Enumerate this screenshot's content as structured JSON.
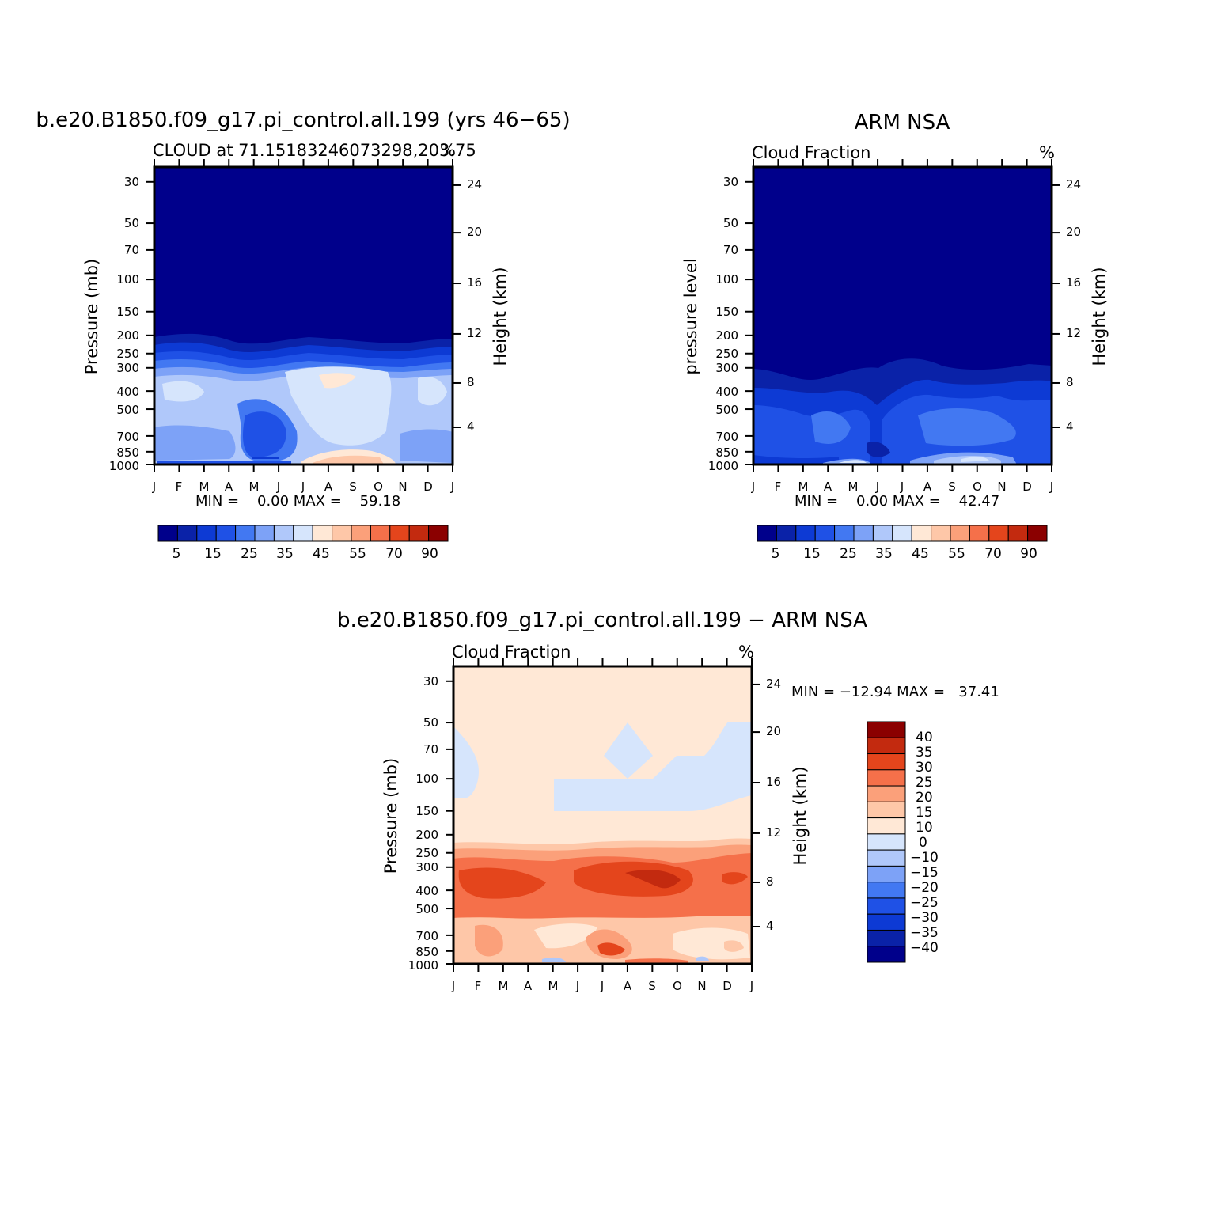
{
  "colors": {
    "abs_scale": [
      "#00008b",
      "#0a22a8",
      "#0d3ad4",
      "#1f51e6",
      "#4278f2",
      "#7da2f7",
      "#b0c8fa",
      "#d6e5fc",
      "#ffe8d6",
      "#fec7a8",
      "#fba07a",
      "#f5704a",
      "#e4451c",
      "#c32a0f",
      "#8b0000"
    ],
    "diff_scale": [
      "#00008b",
      "#0a22a8",
      "#0d3ad4",
      "#1f51e6",
      "#4278f2",
      "#7da2f7",
      "#b0c8fa",
      "#d6e5fc",
      "#ffe8d6",
      "#fec7a8",
      "#fba07a",
      "#f5704a",
      "#e4451c",
      "#c32a0f",
      "#8b0000"
    ]
  },
  "panels": [
    {
      "title": "b.e20.B1850.f09_g17.pi_control.all.199 (yrs 46−65)",
      "subtitle": "CLOUD at 71.15183246073298,203.75",
      "units": "%",
      "left_axis_label": "Pressure (mb)",
      "right_axis_label": "Height (km)",
      "minmax": "MIN =    0.00 MAX =    59.18",
      "colorbar_labels": [
        "5",
        "15",
        "25",
        "35",
        "45",
        "55",
        "70",
        "90"
      ]
    },
    {
      "title": "ARM NSA",
      "subtitle": "Cloud Fraction",
      "units": "%",
      "left_axis_label": "pressure level",
      "right_axis_label": "Height (km)",
      "minmax": "MIN =    0.00 MAX =    42.47",
      "colorbar_labels": [
        "5",
        "15",
        "25",
        "35",
        "45",
        "55",
        "70",
        "90"
      ]
    },
    {
      "title": "b.e20.B1850.f09_g17.pi_control.all.199 − ARM NSA",
      "subtitle": "Cloud Fraction",
      "units": "%",
      "left_axis_label": "Pressure (mb)",
      "right_axis_label": "Height (km)",
      "minmax": "MIN = −12.94 MAX =   37.41",
      "colorbar_labels": [
        "40",
        "35",
        "30",
        "25",
        "20",
        "15",
        "10",
        "0",
        "−10",
        "−15",
        "−20",
        "−25",
        "−30",
        "−35",
        "−40"
      ]
    }
  ],
  "chart_data": [
    {
      "type": "heatmap",
      "title": "b.e20.B1850.f09_g17.pi_control.all.199 (yrs 46−65)",
      "subtitle": "CLOUD at 71.15183246073298,203.75",
      "x": [
        "J",
        "F",
        "M",
        "A",
        "M",
        "J",
        "J",
        "A",
        "S",
        "O",
        "N",
        "D",
        "J"
      ],
      "pressure_ticks": [
        30,
        50,
        70,
        100,
        150,
        200,
        250,
        300,
        400,
        500,
        700,
        850,
        1000
      ],
      "height_ticks": [
        4,
        8,
        12,
        16,
        20,
        24
      ],
      "ylabel": "Pressure (mb)",
      "y2label": "Height (km)",
      "units": "%",
      "min": 0.0,
      "max": 59.18,
      "levels": [
        5,
        15,
        25,
        35,
        45,
        55,
        70,
        90
      ]
    },
    {
      "type": "heatmap",
      "title": "ARM NSA",
      "subtitle": "Cloud Fraction",
      "x": [
        "J",
        "F",
        "M",
        "A",
        "M",
        "J",
        "J",
        "A",
        "S",
        "O",
        "N",
        "D",
        "J"
      ],
      "pressure_ticks": [
        30,
        50,
        70,
        100,
        150,
        200,
        250,
        300,
        400,
        500,
        700,
        850,
        1000
      ],
      "height_ticks": [
        4,
        8,
        12,
        16,
        20,
        24
      ],
      "ylabel": "pressure level",
      "y2label": "Height (km)",
      "units": "%",
      "min": 0.0,
      "max": 42.47,
      "levels": [
        5,
        15,
        25,
        35,
        45,
        55,
        70,
        90
      ]
    },
    {
      "type": "heatmap",
      "title": "b.e20.B1850.f09_g17.pi_control.all.199 − ARM NSA",
      "subtitle": "Cloud Fraction",
      "x": [
        "J",
        "F",
        "M",
        "A",
        "M",
        "J",
        "J",
        "A",
        "S",
        "O",
        "N",
        "D",
        "J"
      ],
      "pressure_ticks": [
        30,
        50,
        70,
        100,
        150,
        200,
        250,
        300,
        400,
        500,
        700,
        850,
        1000
      ],
      "height_ticks": [
        4,
        8,
        12,
        16,
        20,
        24
      ],
      "ylabel": "Pressure (mb)",
      "y2label": "Height (km)",
      "units": "%",
      "min": -12.94,
      "max": 37.41,
      "levels": [
        -40,
        -35,
        -30,
        -25,
        -20,
        -15,
        -10,
        0,
        10,
        15,
        20,
        25,
        30,
        35,
        40
      ]
    }
  ]
}
